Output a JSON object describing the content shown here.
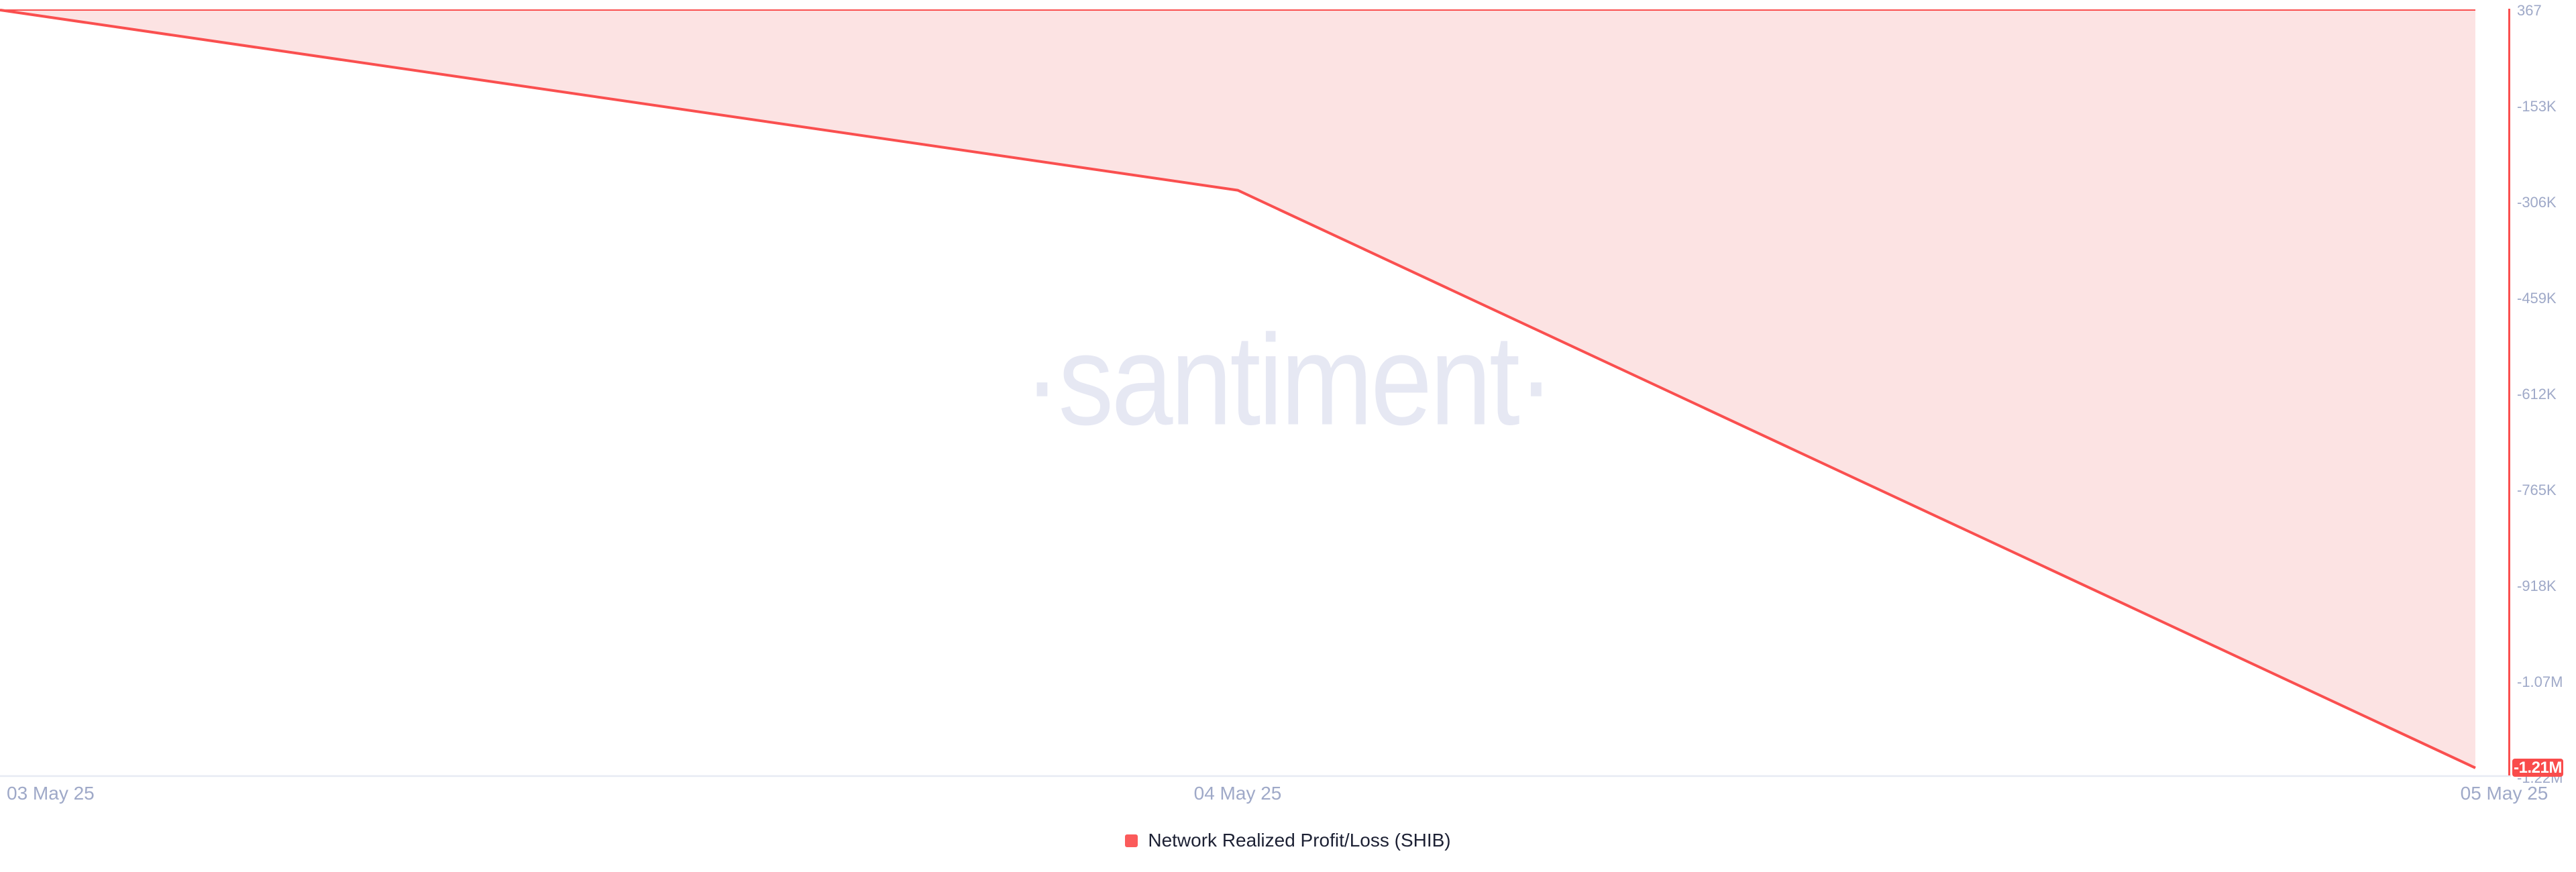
{
  "watermark": {
    "text": "·santiment·"
  },
  "legend": {
    "swatch_color": "#fb5b5b",
    "label": "Network Realized Profit/Loss (SHIB)"
  },
  "badge": {
    "text": "-1.21M",
    "bg": "#f94c4c",
    "fg": "#ffffff"
  },
  "colors": {
    "line": "#fa4f4f",
    "fill": "#fce3e3",
    "right_axis": "#fa4f4f",
    "bottom_axis": "#e7eaf3",
    "tick_label": "#9fa9c8",
    "legend_text": "#1d2134",
    "watermark": "#e6e8f3"
  },
  "chart_data": {
    "type": "area",
    "title": "Network Realized Profit/Loss (SHIB)",
    "categories": [
      "03 May 25",
      "04 May 25",
      "05 May 25"
    ],
    "values": [
      367,
      -287000,
      -1210000
    ],
    "series": [
      {
        "name": "Network Realized Profit/Loss (SHIB)",
        "values": [
          367,
          -287000,
          -1210000
        ]
      }
    ],
    "xlabel": "",
    "ylabel": "",
    "y_ticks": [
      "367",
      "-153K",
      "-306K",
      "-459K",
      "-612K",
      "-765K",
      "-918K",
      "-1.07M",
      "-1.22M"
    ],
    "y_tick_values": [
      367,
      -153000,
      -306000,
      -459000,
      -612000,
      -765000,
      -918000,
      -1070000,
      -1220000
    ],
    "ylim": [
      -1220000,
      367
    ],
    "grid": false,
    "legend_position": "bottom",
    "current_value_label": "-1.21M",
    "current_value": -1210000,
    "line_color": "#fa4f4f",
    "fill_color": "#fce3e3"
  }
}
